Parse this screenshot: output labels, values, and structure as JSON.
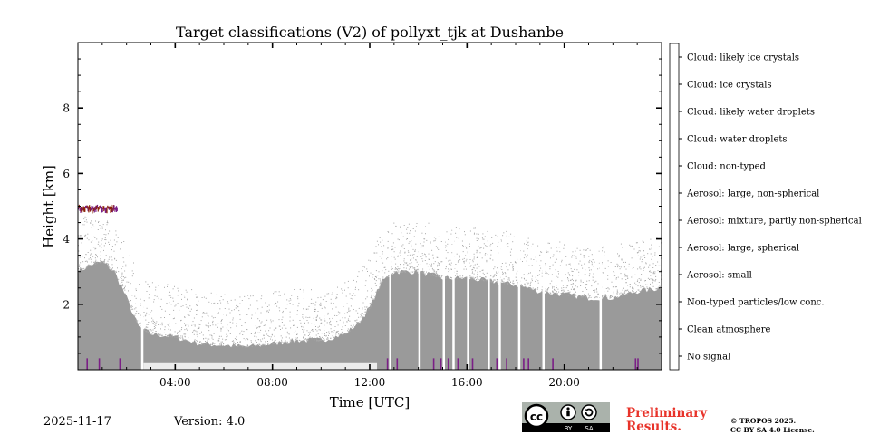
{
  "chart_data": {
    "type": "heatmap",
    "title": "Target classifications (V2) of pollyxt_tjk at Dushanbe",
    "xlabel": "Time [UTC]",
    "ylabel": "Height [km]",
    "xlim_hours": [
      0,
      24
    ],
    "ylim_km": [
      0,
      10
    ],
    "x_ticks": [
      {
        "value": 4,
        "label": "04:00"
      },
      {
        "value": 8,
        "label": "08:00"
      },
      {
        "value": 12,
        "label": "12:00"
      },
      {
        "value": 16,
        "label": "16:00"
      },
      {
        "value": 20,
        "label": "20:00"
      }
    ],
    "y_ticks": [
      {
        "value": 2,
        "label": "2"
      },
      {
        "value": 4,
        "label": "4"
      },
      {
        "value": 6,
        "label": "6"
      },
      {
        "value": 8,
        "label": "8"
      }
    ],
    "colorbar": [
      {
        "label": "Cloud: likely ice crystals",
        "color": "#8ab85f"
      },
      {
        "label": "Cloud: ice crystals",
        "color": "#0e7a3c"
      },
      {
        "label": "Cloud: likely water droplets",
        "color": "#b3dcf7"
      },
      {
        "label": "Cloud: water droplets",
        "color": "#3a88c8"
      },
      {
        "label": "Cloud: non-typed",
        "color": "#7b1f86"
      },
      {
        "label": "Aerosol: large, non-spherical",
        "color": "#000000"
      },
      {
        "label": "Aerosol: mixture, partly non-spherical",
        "color": "#8c2308"
      },
      {
        "label": "Aerosol: large, spherical",
        "color": "#e8743b"
      },
      {
        "label": "Aerosol: small",
        "color": "#dec07a"
      },
      {
        "label": "Non-typed particles/low conc.",
        "color": "#9a9a9a"
      },
      {
        "label": "Clean atmosphere",
        "color": "#f2f2f2"
      },
      {
        "label": "No signal",
        "color": "#ffffff"
      }
    ],
    "layer_top_profile": [
      {
        "hour": 0.0,
        "top_km": 3.0
      },
      {
        "hour": 0.5,
        "top_km": 3.2
      },
      {
        "hour": 1.0,
        "top_km": 3.3
      },
      {
        "hour": 1.5,
        "top_km": 3.0
      },
      {
        "hour": 2.0,
        "top_km": 2.2
      },
      {
        "hour": 2.5,
        "top_km": 1.3
      },
      {
        "hour": 3.0,
        "top_km": 1.1
      },
      {
        "hour": 4.0,
        "top_km": 1.0
      },
      {
        "hour": 5.0,
        "top_km": 0.8
      },
      {
        "hour": 6.0,
        "top_km": 0.75
      },
      {
        "hour": 7.0,
        "top_km": 0.7
      },
      {
        "hour": 8.0,
        "top_km": 0.8
      },
      {
        "hour": 9.0,
        "top_km": 0.9
      },
      {
        "hour": 10.0,
        "top_km": 0.9
      },
      {
        "hour": 11.0,
        "top_km": 1.1
      },
      {
        "hour": 11.5,
        "top_km": 1.4
      },
      {
        "hour": 12.0,
        "top_km": 1.9
      },
      {
        "hour": 12.5,
        "top_km": 2.7
      },
      {
        "hour": 13.0,
        "top_km": 3.0
      },
      {
        "hour": 14.0,
        "top_km": 3.0
      },
      {
        "hour": 15.0,
        "top_km": 2.8
      },
      {
        "hour": 16.0,
        "top_km": 2.8
      },
      {
        "hour": 17.0,
        "top_km": 2.7
      },
      {
        "hour": 18.0,
        "top_km": 2.6
      },
      {
        "hour": 19.0,
        "top_km": 2.4
      },
      {
        "hour": 20.0,
        "top_km": 2.3
      },
      {
        "hour": 21.0,
        "top_km": 2.2
      },
      {
        "hour": 22.0,
        "top_km": 2.2
      },
      {
        "hour": 23.0,
        "top_km": 2.4
      },
      {
        "hour": 24.0,
        "top_km": 2.5
      }
    ],
    "gaps_hours": [
      2.6,
      12.8,
      14.0,
      15.0,
      15.4,
      16.0,
      16.85,
      17.3,
      18.1,
      19.1,
      21.45
    ],
    "cloud_layer": {
      "start_hour": 0.0,
      "end_hour": 1.6,
      "base_km": 4.75,
      "top_km": 5.0
    },
    "nontyped_marks_hours": [
      0.35,
      0.85,
      1.7,
      12.7,
      13.1,
      14.6,
      14.9,
      15.2,
      15.6,
      16.2,
      17.2,
      17.6,
      18.3,
      18.5,
      19.5,
      22.9,
      23.0
    ]
  },
  "footer": {
    "date": "2025-11-17",
    "version": "Version: 4.0",
    "preliminary_line1": "Preliminary",
    "preliminary_line2": "Results.",
    "copyright_line1": "© TROPOS 2025.",
    "copyright_line2": "CC BY SA 4.0 License.",
    "badge_cc": "cc",
    "badge_by": "BY",
    "badge_sa": "SA"
  }
}
